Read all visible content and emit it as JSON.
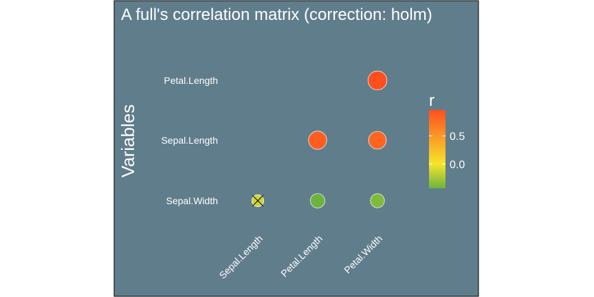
{
  "chart_data": {
    "type": "scatter",
    "title": "A full's correlation matrix (correction: holm)",
    "ylabel": "Variables",
    "xlabel": "",
    "x_categories": [
      "Sepal.Length",
      "Petal.Length",
      "Petal.Width"
    ],
    "y_categories": [
      "Sepal.Width",
      "Sepal.Length",
      "Petal.Length"
    ],
    "points": [
      {
        "x": "Sepal.Length",
        "y": "Sepal.Width",
        "r": -0.12,
        "significant": false
      },
      {
        "x": "Petal.Length",
        "y": "Sepal.Width",
        "r": -0.43,
        "significant": true
      },
      {
        "x": "Petal.Width",
        "y": "Sepal.Width",
        "r": -0.37,
        "significant": true
      },
      {
        "x": "Petal.Length",
        "y": "Sepal.Length",
        "r": 0.87,
        "significant": true
      },
      {
        "x": "Petal.Width",
        "y": "Sepal.Length",
        "r": 0.82,
        "significant": true
      },
      {
        "x": "Petal.Width",
        "y": "Petal.Length",
        "r": 0.96,
        "significant": true
      }
    ],
    "legend": {
      "title": "r",
      "position": "right",
      "range": [
        -0.43,
        0.96
      ],
      "ticks": [
        0.0,
        0.5
      ],
      "tick_labels": [
        "0.0",
        "0.5"
      ]
    },
    "colors": {
      "background": "#607d8b",
      "low": "#6db33f",
      "mid": "#f5e52a",
      "high": "#ff4f1f",
      "text": "#ffffff"
    }
  }
}
